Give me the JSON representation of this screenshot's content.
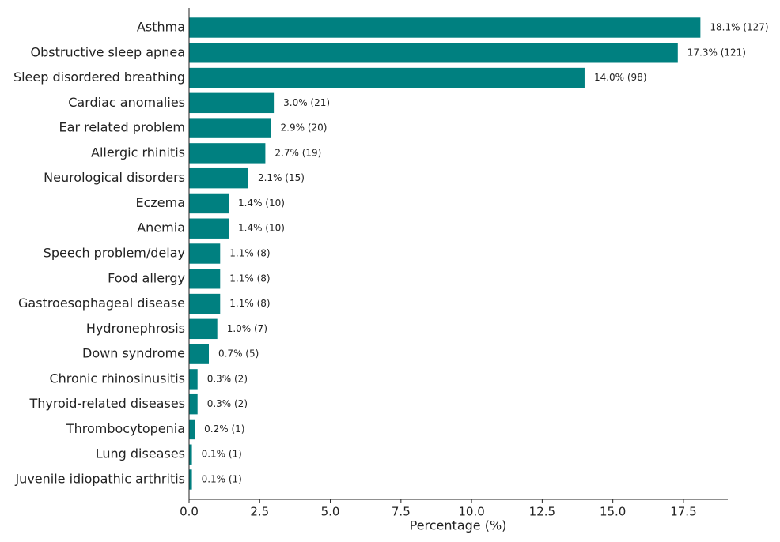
{
  "chart_data": {
    "type": "barh",
    "x_label": "Percentage (%)",
    "categories": [
      "Asthma",
      "Obstructive sleep apnea",
      "Sleep disordered breathing",
      "Cardiac anomalies",
      "Ear related problem",
      "Allergic rhinitis",
      "Neurological disorders",
      "Eczema",
      "Anemia",
      "Speech problem/delay",
      "Food allergy",
      "Gastroesophageal disease",
      "Hydronephrosis",
      "Down syndrome",
      "Chronic rhinosinusitis",
      "Thyroid-related diseases",
      "Thrombocytopenia",
      "Lung diseases",
      "Juvenile idiopathic arthritis"
    ],
    "values": [
      18.1,
      17.3,
      14.0,
      3.0,
      2.9,
      2.7,
      2.1,
      1.4,
      1.4,
      1.1,
      1.1,
      1.1,
      1.0,
      0.7,
      0.3,
      0.3,
      0.2,
      0.1,
      0.1
    ],
    "value_labels": [
      "18.1% (127)",
      "17.3% (121)",
      "14.0% (98)",
      "3.0% (21)",
      "2.9% (20)",
      "2.7% (19)",
      "2.1% (15)",
      "1.4% (10)",
      "1.4% (10)",
      "1.1% (8)",
      "1.1% (8)",
      "1.1% (8)",
      "1.0% (7)",
      "0.7% (5)",
      "0.3% (2)",
      "0.3% (2)",
      "0.2% (1)",
      "0.1% (1)",
      "0.1% (1)"
    ],
    "color": "#008080",
    "xlim": [
      0,
      19.07
    ],
    "xticks": [
      {
        "value": 0,
        "label": "0.0"
      },
      2.5,
      {
        "value": 5,
        "label": "5.0"
      },
      7.5,
      {
        "value": 10,
        "label": "10.0"
      },
      12.5,
      {
        "value": 15,
        "label": "15.0"
      },
      17.5
    ]
  }
}
